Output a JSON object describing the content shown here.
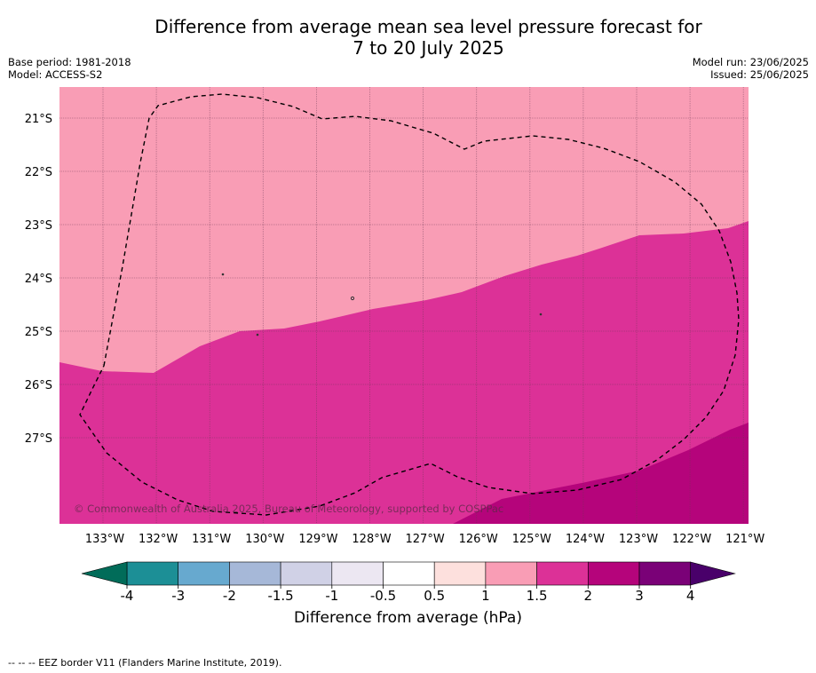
{
  "title": {
    "line1": "Difference from average mean sea level pressure forecast for",
    "line2": "7 to 20 July 2025"
  },
  "meta": {
    "base_period": "Base period: 1981-2018",
    "model": "Model: ACCESS-S2",
    "model_run": "Model run: 23/06/2025",
    "issued": "Issued: 25/06/2025"
  },
  "map": {
    "lat_labels": [
      "21°S",
      "22°S",
      "23°S",
      "24°S",
      "25°S",
      "26°S",
      "27°S"
    ],
    "lon_labels": [
      "133°W",
      "132°W",
      "131°W",
      "130°W",
      "129°W",
      "128°W",
      "127°W",
      "126°W",
      "125°W",
      "124°W",
      "123°W",
      "122°W",
      "121°W"
    ],
    "copyright": "© Commonwealth of Australia 2025, Bureau of Meteorology, supported by COSPPac",
    "colors": {
      "band_1_1_5": "#f99db5",
      "band_1_5_2": "#dc3197",
      "band_2_3": "#b5047b"
    }
  },
  "colorbar": {
    "ticks": [
      "-4",
      "-3",
      "-2",
      "-1.5",
      "-1",
      "-0.5",
      "0.5",
      "1",
      "1.5",
      "2",
      "3",
      "4"
    ],
    "colors": [
      "#1c8f96",
      "#67a9cf",
      "#a6b8d8",
      "#d0d1e6",
      "#ece7f2",
      "#ffffff",
      "#fde0dd",
      "#f99db5",
      "#dc3197",
      "#b5047b",
      "#7a0177"
    ],
    "extend_low": "#016c59",
    "extend_high": "#49006a",
    "label": "Difference from average (hPa)"
  },
  "footnote": "--  --  -- EEZ border V11 (Flanders Marine Institute, 2019)."
}
